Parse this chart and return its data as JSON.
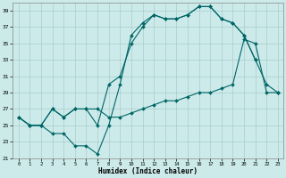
{
  "xlabel": "Humidex (Indice chaleur)",
  "bg_color": "#cceaea",
  "grid_color": "#aacccc",
  "line_color": "#006666",
  "xlim": [
    -0.5,
    23.5
  ],
  "ylim": [
    21,
    40
  ],
  "yticks": [
    21,
    23,
    25,
    27,
    29,
    31,
    33,
    35,
    37,
    39
  ],
  "xticks": [
    0,
    1,
    2,
    3,
    4,
    5,
    6,
    7,
    8,
    9,
    10,
    11,
    12,
    13,
    14,
    15,
    16,
    17,
    18,
    19,
    20,
    21,
    22,
    23
  ],
  "line1_x": [
    0,
    1,
    2,
    3,
    4,
    5,
    6,
    7,
    8,
    9,
    10,
    11,
    12,
    13,
    14,
    15,
    16,
    17,
    18,
    19,
    20,
    21,
    22,
    23
  ],
  "line1_y": [
    26,
    25,
    25,
    24,
    24,
    22.5,
    22.5,
    21.5,
    25,
    30,
    36,
    37.5,
    38.5,
    38,
    38,
    38.5,
    39.5,
    39.5,
    38,
    37.5,
    36,
    33,
    30,
    29
  ],
  "line2_x": [
    0,
    1,
    2,
    3,
    4,
    5,
    6,
    7,
    8,
    9,
    10,
    11,
    12,
    13,
    14,
    15,
    16,
    17,
    18,
    19,
    20,
    21,
    22,
    23
  ],
  "line2_y": [
    26,
    25,
    25,
    27,
    26,
    27,
    27,
    27,
    26,
    26,
    26.5,
    27,
    27.5,
    28,
    28,
    28.5,
    29,
    29,
    29.5,
    30,
    35.5,
    35,
    29,
    29
  ],
  "line3_x": [
    0,
    1,
    2,
    3,
    4,
    5,
    6,
    7,
    8,
    9,
    10,
    11,
    12,
    13,
    14,
    15,
    16,
    17,
    18,
    19,
    20,
    21,
    22,
    23
  ],
  "line3_y": [
    26,
    25,
    25,
    27,
    26,
    27,
    27,
    25,
    30,
    31,
    35,
    37,
    38.5,
    38,
    38,
    38.5,
    39.5,
    39.5,
    38,
    37.5,
    36,
    33,
    null,
    29
  ],
  "marker": "D",
  "markersize": 2,
  "linewidth": 0.8
}
